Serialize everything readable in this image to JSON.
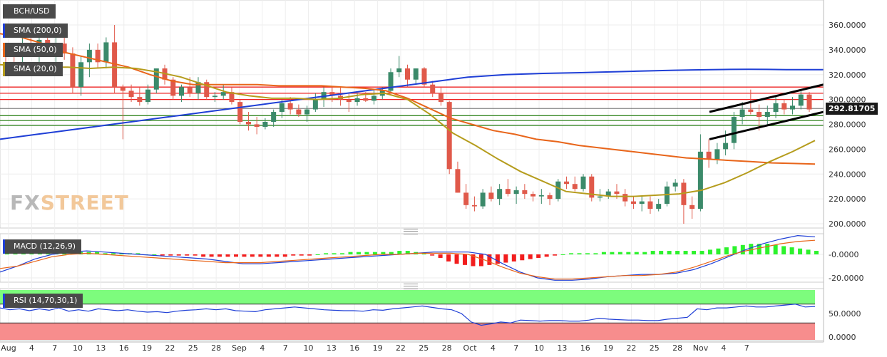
{
  "chart_data": {
    "type": "candlestick",
    "symbol": "BCH/USD",
    "last_price": "292.81705",
    "ylim": [
      195,
      368
    ],
    "yticks": [
      "360.0000",
      "340.0000",
      "320.0000",
      "300.0000",
      "280.0000",
      "260.0000",
      "240.0000",
      "220.0000",
      "200.0000"
    ],
    "ytick_values": [
      360,
      340,
      320,
      300,
      280,
      260,
      240,
      220,
      200
    ],
    "xlabels": [
      "Aug",
      "4",
      "7",
      "10",
      "13",
      "16",
      "19",
      "22",
      "25",
      "28",
      "Sep",
      "4",
      "7",
      "10",
      "13",
      "16",
      "19",
      "22",
      "25",
      "28",
      "Oct",
      "4",
      "7",
      "10",
      "13",
      "16",
      "19",
      "22",
      "25",
      "28",
      "Nov",
      "4",
      "7"
    ],
    "candles_ohlc": [
      [
        342,
        344,
        325,
        338
      ],
      [
        338,
        342,
        320,
        335
      ],
      [
        335,
        350,
        330,
        345
      ],
      [
        345,
        355,
        335,
        341
      ],
      [
        341,
        352,
        330,
        348
      ],
      [
        348,
        353,
        335,
        343
      ],
      [
        343,
        350,
        330,
        345
      ],
      [
        345,
        352,
        332,
        337
      ],
      [
        337,
        342,
        305,
        310
      ],
      [
        310,
        335,
        303,
        330
      ],
      [
        330,
        345,
        318,
        340
      ],
      [
        340,
        345,
        325,
        330
      ],
      [
        330,
        350,
        325,
        346
      ],
      [
        346,
        360,
        305,
        310
      ],
      [
        310,
        312,
        268,
        307
      ],
      [
        307,
        312,
        298,
        302
      ],
      [
        302,
        310,
        295,
        298
      ],
      [
        298,
        312,
        296,
        308
      ],
      [
        308,
        325,
        305,
        325
      ],
      [
        325,
        328,
        312,
        316
      ],
      [
        316,
        318,
        300,
        303
      ],
      [
        303,
        312,
        298,
        310
      ],
      [
        310,
        318,
        302,
        305
      ],
      [
        305,
        318,
        300,
        314
      ],
      [
        314,
        316,
        300,
        302
      ],
      [
        302,
        306,
        298,
        303
      ],
      [
        303,
        312,
        300,
        306
      ],
      [
        306,
        310,
        296,
        298
      ],
      [
        298,
        300,
        280,
        282
      ],
      [
        282,
        290,
        275,
        280
      ],
      [
        280,
        286,
        272,
        278
      ],
      [
        278,
        285,
        276,
        282
      ],
      [
        282,
        292,
        278,
        290
      ],
      [
        290,
        300,
        285,
        297
      ],
      [
        297,
        302,
        288,
        292
      ],
      [
        292,
        296,
        286,
        288
      ],
      [
        288,
        295,
        282,
        292
      ],
      [
        292,
        305,
        290,
        300
      ],
      [
        300,
        310,
        294,
        306
      ],
      [
        306,
        310,
        298,
        303
      ],
      [
        303,
        310,
        295,
        300
      ],
      [
        300,
        305,
        290,
        298
      ],
      [
        298,
        305,
        295,
        301
      ],
      [
        301,
        306,
        298,
        299
      ],
      [
        299,
        308,
        296,
        303
      ],
      [
        303,
        310,
        300,
        307
      ],
      [
        307,
        325,
        305,
        322
      ],
      [
        322,
        335,
        318,
        325
      ],
      [
        325,
        328,
        310,
        316
      ],
      [
        316,
        325,
        312,
        325
      ],
      [
        325,
        326,
        310,
        312
      ],
      [
        312,
        315,
        302,
        305
      ],
      [
        305,
        310,
        295,
        298
      ],
      [
        298,
        299,
        240,
        244
      ],
      [
        244,
        250,
        225,
        225
      ],
      [
        225,
        232,
        212,
        215
      ],
      [
        215,
        222,
        210,
        214
      ],
      [
        214,
        228,
        212,
        225
      ],
      [
        225,
        230,
        218,
        220
      ],
      [
        220,
        232,
        215,
        228
      ],
      [
        228,
        236,
        222,
        224
      ],
      [
        224,
        230,
        216,
        227
      ],
      [
        227,
        232,
        220,
        224
      ],
      [
        224,
        226,
        218,
        222
      ],
      [
        222,
        228,
        216,
        223
      ],
      [
        223,
        225,
        215,
        220
      ],
      [
        220,
        236,
        218,
        234
      ],
      [
        234,
        238,
        228,
        232
      ],
      [
        232,
        238,
        226,
        228
      ],
      [
        228,
        240,
        226,
        238
      ],
      [
        238,
        240,
        218,
        221
      ],
      [
        221,
        228,
        218,
        222
      ],
      [
        222,
        228,
        220,
        226
      ],
      [
        226,
        232,
        220,
        224
      ],
      [
        224,
        228,
        214,
        218
      ],
      [
        218,
        222,
        212,
        216
      ],
      [
        216,
        222,
        210,
        218
      ],
      [
        218,
        222,
        208,
        212
      ],
      [
        212,
        220,
        210,
        216
      ],
      [
        216,
        234,
        214,
        230
      ],
      [
        230,
        236,
        226,
        233
      ],
      [
        233,
        236,
        200,
        215
      ],
      [
        215,
        222,
        204,
        212
      ],
      [
        212,
        272,
        210,
        258
      ],
      [
        258,
        268,
        245,
        252
      ],
      [
        252,
        265,
        248,
        260
      ],
      [
        260,
        275,
        255,
        265
      ],
      [
        265,
        290,
        260,
        286
      ],
      [
        286,
        298,
        280,
        292
      ],
      [
        292,
        308,
        288,
        290
      ],
      [
        290,
        296,
        275,
        286
      ],
      [
        286,
        295,
        280,
        290
      ],
      [
        290,
        302,
        285,
        297
      ],
      [
        297,
        300,
        288,
        292
      ],
      [
        292,
        302,
        288,
        295
      ],
      [
        295,
        307,
        292,
        304
      ],
      [
        304,
        306,
        290,
        292
      ]
    ],
    "series": [
      {
        "name": "SMA (200,0)",
        "color": "#1f3fd6",
        "values": [
          268,
          270,
          272,
          274,
          276,
          278,
          280,
          282,
          284,
          286,
          288,
          290,
          292,
          294,
          296,
          298,
          300,
          302,
          304,
          306,
          308,
          310,
          312,
          314,
          316,
          318,
          319,
          320,
          320.5,
          321,
          321.3,
          321.6,
          322,
          322.4,
          322.8,
          323.2,
          323.5,
          323.8,
          324,
          324.2,
          324.3,
          324.2,
          324,
          324,
          324
        ]
      },
      {
        "name": "SMA (50,0)",
        "color": "#e8651a",
        "values": [
          353,
          350,
          345,
          338,
          334,
          330,
          326,
          320,
          315,
          312,
          312,
          312,
          312,
          311,
          311,
          311,
          310,
          309,
          307,
          301,
          293,
          285,
          280,
          275,
          272,
          268,
          266,
          263,
          261,
          259,
          257,
          255,
          253,
          252,
          251,
          250,
          249,
          248.5,
          248
        ]
      },
      {
        "name": "SMA (20,0)",
        "color": "#b59c1c",
        "values": [
          328,
          327,
          326,
          326,
          325,
          326,
          325,
          322,
          318,
          312,
          306,
          303,
          301,
          301,
          300,
          301,
          304,
          305,
          300,
          288,
          273,
          263,
          252,
          242,
          234,
          226,
          224,
          222,
          222,
          223,
          224,
          227,
          233,
          241,
          250,
          258,
          267
        ]
      }
    ],
    "horizontal_levels": {
      "red": [
        310,
        305,
        300
      ],
      "green": [
        287,
        283,
        279
      ],
      "current": 292.8
    },
    "channel": {
      "upper": [
        [
          995,
          290
        ],
        [
          1155,
          312
        ]
      ],
      "lower": [
        [
          995,
          268
        ],
        [
          1155,
          290
        ]
      ]
    },
    "macd": {
      "label": "MACD (12,26,9)",
      "yticks": [
        "-0.0000",
        "-20.0000"
      ],
      "ylim": [
        -25,
        15
      ],
      "histogram": [
        2,
        2,
        2,
        2,
        2,
        2,
        2,
        2,
        2,
        2,
        2,
        2,
        1,
        1,
        1,
        1,
        1,
        0,
        0,
        -1,
        -1,
        -1,
        -1,
        -1,
        -2,
        -2,
        -2,
        -2,
        -2,
        -2,
        -2,
        -2,
        -2,
        -2,
        -2,
        -1,
        -1,
        -1,
        0,
        1,
        1,
        1,
        2,
        2,
        2,
        2,
        2,
        2,
        3,
        3,
        2,
        1,
        -1,
        -3,
        -6,
        -8,
        -9,
        -10,
        -10,
        -9,
        -8,
        -7,
        -6,
        -5,
        -4,
        -3,
        -2,
        -1,
        0,
        1,
        1,
        1,
        1,
        2,
        2,
        2,
        2,
        2,
        2,
        3,
        3,
        3,
        3,
        3,
        3,
        3,
        4,
        5,
        6,
        7,
        8,
        9,
        9,
        9,
        8,
        7,
        6,
        5,
        4,
        3
      ],
      "macd_line": [
        -15,
        -10,
        -4,
        0,
        2,
        3,
        2,
        1,
        0,
        -1,
        -2,
        -3,
        -4,
        -6,
        -8,
        -8,
        -7,
        -6,
        -5,
        -4,
        -3,
        -2,
        -1,
        0,
        1,
        2,
        2,
        2,
        0,
        -8,
        -15,
        -20,
        -22,
        -22,
        -21,
        -19,
        -18,
        -17,
        -17,
        -16,
        -13,
        -8,
        -2,
        4,
        9,
        13,
        16,
        15
      ],
      "signal_line": [
        -12,
        -10,
        -6,
        -2,
        0,
        1,
        0,
        -1,
        -2,
        -3,
        -4,
        -5,
        -6,
        -7,
        -7,
        -7,
        -6,
        -5,
        -4,
        -3,
        -2,
        -1,
        0,
        0,
        1,
        1,
        1,
        0,
        -5,
        -11,
        -16,
        -19,
        -21,
        -21,
        -20,
        -19,
        -18,
        -18,
        -17,
        -15,
        -11,
        -6,
        -1,
        3,
        6,
        9,
        11,
        12
      ]
    },
    "rsi": {
      "label": "RSI (14,70,30,1)",
      "yticks": [
        "50.0000",
        "0.0000"
      ],
      "ylim": [
        0,
        100
      ],
      "overbought": 70,
      "oversold": 30,
      "values": [
        62,
        58,
        60,
        56,
        60,
        57,
        62,
        55,
        58,
        55,
        60,
        58,
        56,
        58,
        55,
        53,
        54,
        52,
        55,
        57,
        58,
        60,
        58,
        60,
        56,
        55,
        54,
        58,
        60,
        62,
        64,
        62,
        60,
        58,
        57,
        56,
        56,
        55,
        58,
        57,
        60,
        62,
        64,
        66,
        63,
        60,
        58,
        50,
        32,
        25,
        28,
        32,
        30,
        36,
        35,
        34,
        35,
        35,
        34,
        34,
        36,
        40,
        38,
        37,
        36,
        36,
        35,
        35,
        38,
        40,
        42,
        60,
        58,
        62,
        62,
        64,
        66,
        64,
        64,
        66,
        68,
        70,
        64,
        65
      ]
    },
    "title": "",
    "xlabel": "",
    "ylabel": ""
  },
  "labels": {
    "symbol": "BCH/USD",
    "sma200": "SMA (200,0)",
    "sma50": "SMA (50,0)",
    "sma20": "SMA (20,0)",
    "macd": "MACD (12,26,9)",
    "rsi": "RSI (14,70,30,1)",
    "last_price": "292.81705",
    "logo_a": "FX",
    "logo_b": "STREET"
  },
  "colors": {
    "bull": "#3b8a6a",
    "bear": "#e0594a",
    "rsi_overbought_fill": "#7dfc7d",
    "rsi_oversold_fill": "#f78d8d",
    "macd_pos": "#2cf22c",
    "macd_neg": "#f21d1d"
  }
}
